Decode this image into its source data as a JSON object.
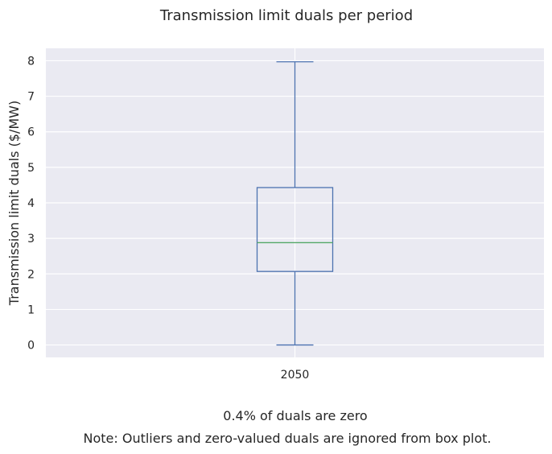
{
  "chart_data": {
    "type": "box",
    "title": "Transmission limit duals per period",
    "xlabel": "",
    "ylabel": "Transmission limit duals ($/MW)",
    "categories": [
      "2050"
    ],
    "boxes": [
      {
        "category": "2050",
        "whisker_low": 0.0,
        "q1": 2.07,
        "median": 2.88,
        "q3": 4.43,
        "whisker_high": 7.97
      }
    ],
    "y_ticks": [
      "0",
      "1",
      "2",
      "3",
      "4",
      "5",
      "6",
      "7",
      "8"
    ],
    "ylim": [
      -0.35,
      8.35
    ],
    "grid": true,
    "notes": [
      "0.4% of duals are zero",
      "Note: Outliers and zero-valued duals are ignored from box plot."
    ]
  },
  "colors": {
    "plot_background": "#EAEAF2",
    "grid": "#FFFFFF",
    "box": "#4C72B0",
    "median": "#55A868",
    "text": "#262626"
  }
}
